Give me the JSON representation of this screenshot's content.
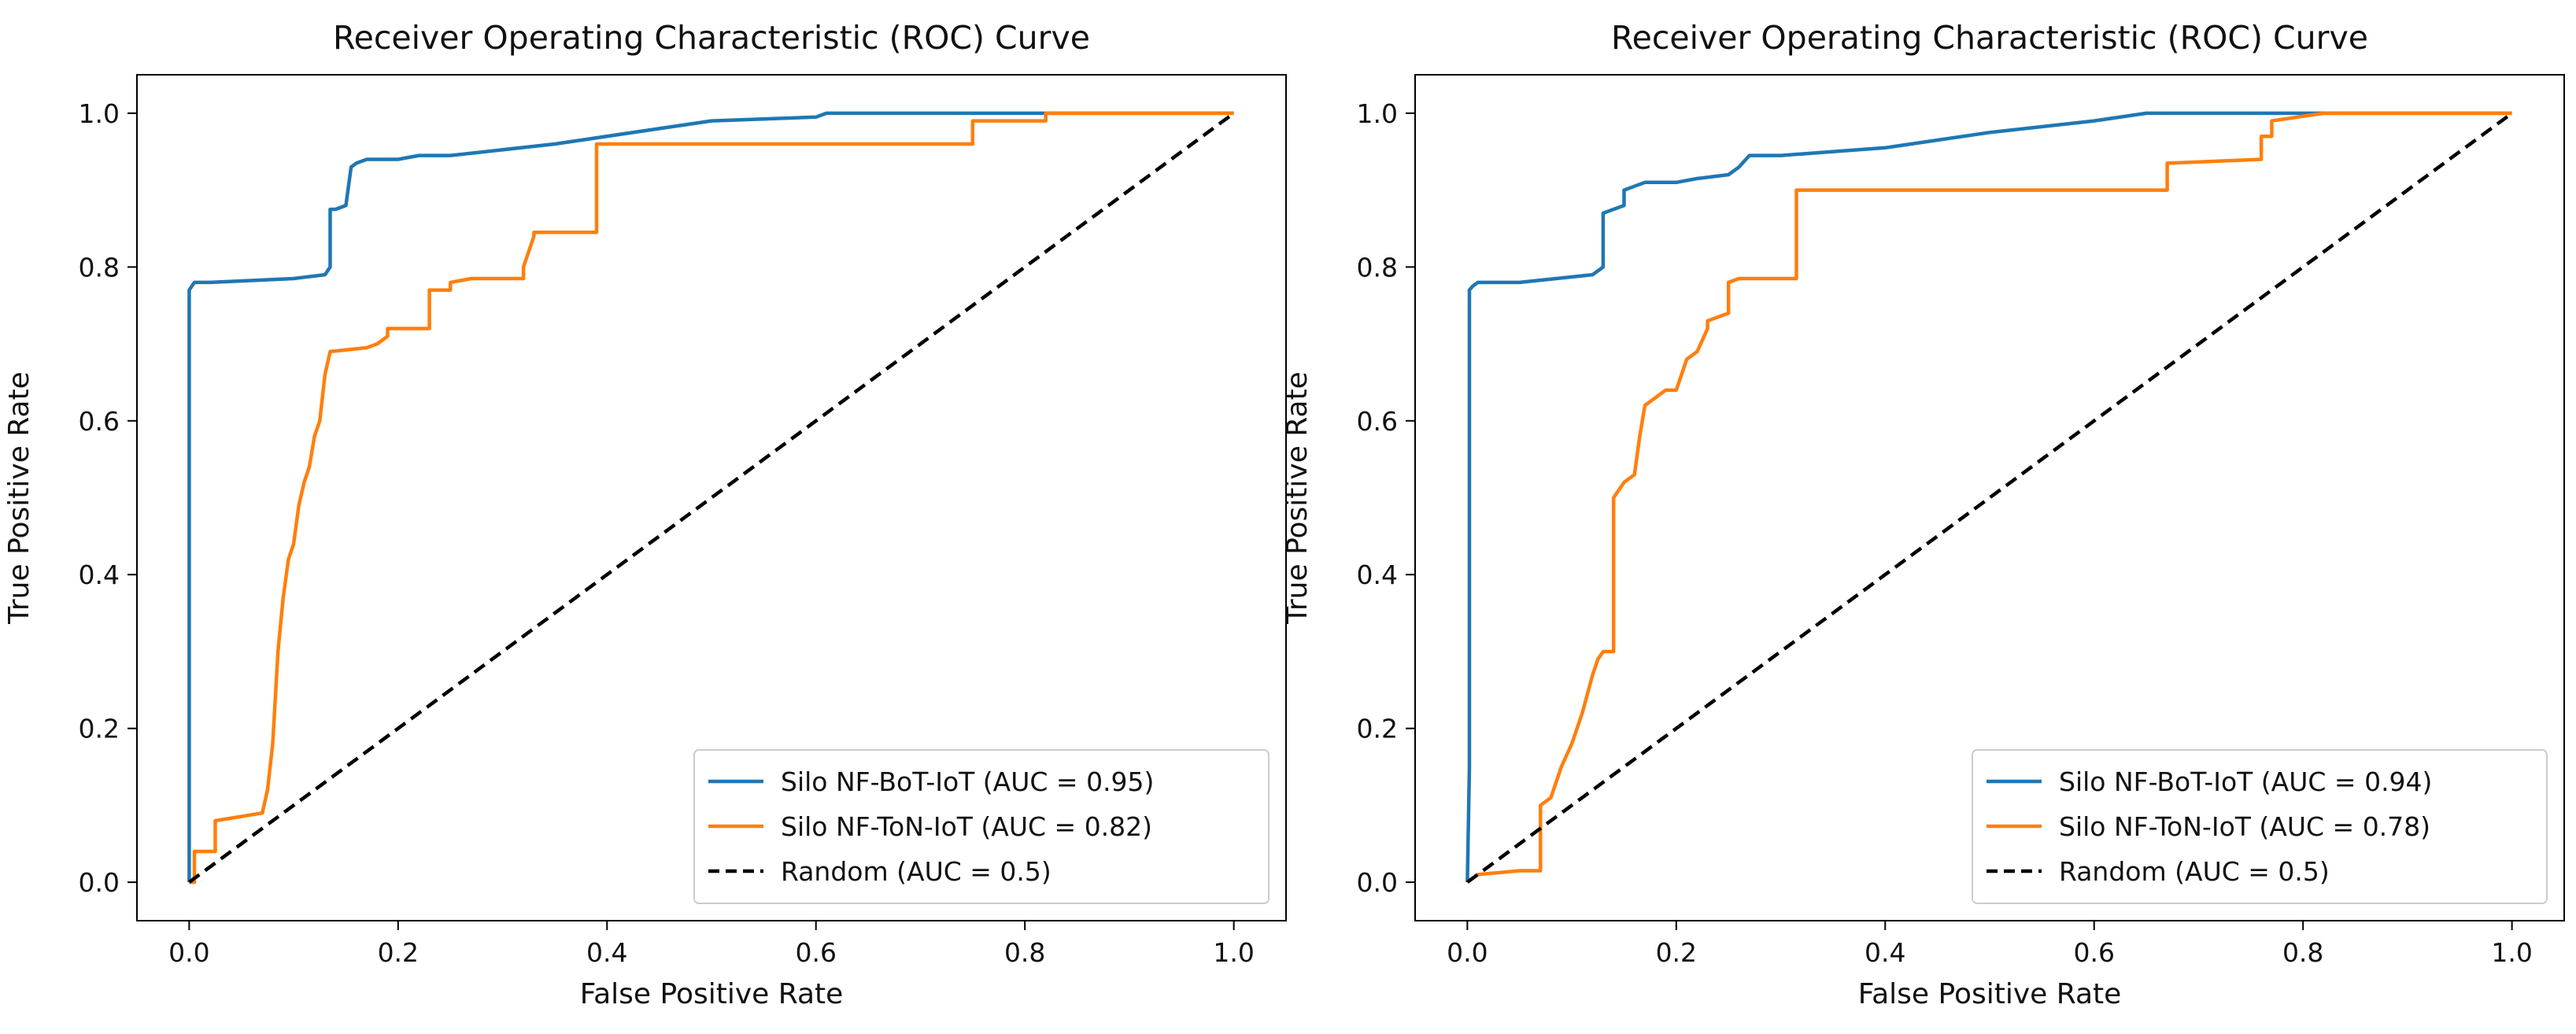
{
  "chart_data": [
    {
      "type": "line",
      "title": "Receiver Operating Characteristic (ROC) Curve",
      "xlabel": "False Positive Rate",
      "ylabel": "True Positive Rate",
      "xlim": [
        -0.05,
        1.05
      ],
      "ylim": [
        -0.05,
        1.05
      ],
      "xticks": [
        "0.0",
        "0.2",
        "0.4",
        "0.6",
        "0.8",
        "1.0"
      ],
      "yticks": [
        "0.0",
        "0.2",
        "0.4",
        "0.6",
        "0.8",
        "1.0"
      ],
      "legend_position": "lower-right",
      "series": [
        {
          "name": "Silo NF-BoT-IoT (AUC = 0.95)",
          "color": "#1f77b4",
          "style": "solid",
          "x": [
            0.0,
            0.0,
            0.0,
            0.005,
            0.02,
            0.1,
            0.13,
            0.135,
            0.135,
            0.14,
            0.15,
            0.155,
            0.16,
            0.17,
            0.2,
            0.22,
            0.25,
            0.35,
            0.45,
            0.5,
            0.6,
            0.61,
            0.65,
            0.82,
            1.0
          ],
          "y": [
            0.0,
            0.6,
            0.77,
            0.78,
            0.78,
            0.785,
            0.79,
            0.8,
            0.875,
            0.875,
            0.88,
            0.93,
            0.935,
            0.94,
            0.94,
            0.945,
            0.945,
            0.96,
            0.98,
            0.99,
            0.995,
            1.0,
            1.0,
            1.0,
            1.0
          ]
        },
        {
          "name": "Silo NF-ToN-IoT (AUC = 0.82)",
          "color": "#ff7f0e",
          "style": "solid",
          "x": [
            0.0,
            0.005,
            0.005,
            0.025,
            0.025,
            0.07,
            0.075,
            0.08,
            0.085,
            0.09,
            0.095,
            0.1,
            0.105,
            0.11,
            0.115,
            0.12,
            0.125,
            0.13,
            0.135,
            0.135,
            0.17,
            0.18,
            0.19,
            0.19,
            0.23,
            0.23,
            0.25,
            0.25,
            0.27,
            0.32,
            0.32,
            0.33,
            0.33,
            0.39,
            0.39,
            0.75,
            0.75,
            0.82,
            0.82,
            1.0
          ],
          "y": [
            0.0,
            0.0,
            0.04,
            0.04,
            0.08,
            0.09,
            0.12,
            0.18,
            0.3,
            0.37,
            0.42,
            0.44,
            0.49,
            0.52,
            0.54,
            0.58,
            0.6,
            0.66,
            0.69,
            0.69,
            0.695,
            0.7,
            0.71,
            0.72,
            0.72,
            0.77,
            0.77,
            0.78,
            0.785,
            0.785,
            0.8,
            0.84,
            0.845,
            0.845,
            0.96,
            0.96,
            0.99,
            0.99,
            1.0,
            1.0
          ]
        },
        {
          "name": "Random (AUC = 0.5)",
          "color": "#000000",
          "style": "dashed",
          "x": [
            0.0,
            1.0
          ],
          "y": [
            0.0,
            1.0
          ]
        }
      ]
    },
    {
      "type": "line",
      "title": "Receiver Operating Characteristic (ROC) Curve",
      "xlabel": "False Positive Rate",
      "ylabel": "True Positive Rate",
      "xlim": [
        -0.05,
        1.05
      ],
      "ylim": [
        -0.05,
        1.05
      ],
      "xticks": [
        "0.0",
        "0.2",
        "0.4",
        "0.6",
        "0.8",
        "1.0"
      ],
      "yticks": [
        "0.0",
        "0.2",
        "0.4",
        "0.6",
        "0.8",
        "1.0"
      ],
      "legend_position": "lower-right",
      "series": [
        {
          "name": "Silo NF-BoT-IoT (AUC = 0.94)",
          "color": "#1f77b4",
          "style": "solid",
          "x": [
            0.0,
            0.002,
            0.002,
            0.005,
            0.01,
            0.05,
            0.12,
            0.13,
            0.13,
            0.14,
            0.15,
            0.15,
            0.16,
            0.17,
            0.2,
            0.22,
            0.25,
            0.26,
            0.27,
            0.3,
            0.4,
            0.5,
            0.6,
            0.65,
            0.82,
            1.0
          ],
          "y": [
            0.0,
            0.15,
            0.77,
            0.775,
            0.78,
            0.78,
            0.79,
            0.8,
            0.87,
            0.875,
            0.88,
            0.9,
            0.905,
            0.91,
            0.91,
            0.915,
            0.92,
            0.93,
            0.945,
            0.945,
            0.955,
            0.975,
            0.99,
            1.0,
            1.0,
            1.0
          ]
        },
        {
          "name": "Silo NF-ToN-IoT (AUC = 0.78)",
          "color": "#ff7f0e",
          "style": "solid",
          "x": [
            0.0,
            0.01,
            0.05,
            0.07,
            0.07,
            0.075,
            0.08,
            0.09,
            0.1,
            0.11,
            0.12,
            0.125,
            0.13,
            0.14,
            0.14,
            0.15,
            0.16,
            0.165,
            0.17,
            0.19,
            0.2,
            0.21,
            0.22,
            0.23,
            0.23,
            0.25,
            0.25,
            0.26,
            0.29,
            0.315,
            0.315,
            0.67,
            0.67,
            0.76,
            0.76,
            0.77,
            0.77,
            0.82,
            1.0
          ],
          "y": [
            0.0,
            0.01,
            0.015,
            0.015,
            0.1,
            0.105,
            0.11,
            0.15,
            0.18,
            0.22,
            0.27,
            0.29,
            0.3,
            0.3,
            0.5,
            0.52,
            0.53,
            0.58,
            0.62,
            0.64,
            0.64,
            0.68,
            0.69,
            0.72,
            0.73,
            0.74,
            0.78,
            0.785,
            0.785,
            0.785,
            0.9,
            0.9,
            0.935,
            0.94,
            0.97,
            0.97,
            0.99,
            1.0,
            1.0
          ]
        },
        {
          "name": "Random (AUC = 0.5)",
          "color": "#000000",
          "style": "dashed",
          "x": [
            0.0,
            1.0
          ],
          "y": [
            0.0,
            1.0
          ]
        }
      ]
    }
  ]
}
